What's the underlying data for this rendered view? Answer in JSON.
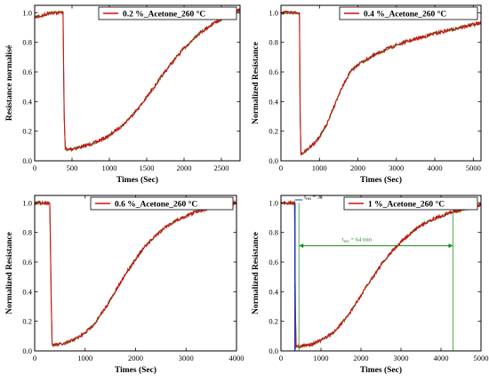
{
  "chart_data": [
    {
      "type": "line",
      "legend": "0.2 %_Acetone_260 °C",
      "legend_position": "top-right",
      "xlabel": "Times (Sec)",
      "ylabel": "Resistance normalisé",
      "xlim": [
        0,
        2750
      ],
      "ylim": [
        0,
        1.05
      ],
      "xticks": [
        0,
        500,
        1000,
        1500,
        2000,
        2500
      ],
      "yticks": [
        0.0,
        0.2,
        0.4,
        0.6,
        0.8,
        1.0
      ],
      "grid": false,
      "series": [
        {
          "color": "#cc1111",
          "x": [
            0,
            100,
            200,
            300,
            380,
            395,
            410,
            430,
            500,
            600,
            800,
            1000,
            1200,
            1400,
            1600,
            1800,
            2000,
            2200,
            2400,
            2600,
            2750
          ],
          "y": [
            0.97,
            0.98,
            1.0,
            1.0,
            1.0,
            0.3,
            0.09,
            0.075,
            0.08,
            0.09,
            0.12,
            0.17,
            0.25,
            0.36,
            0.5,
            0.64,
            0.76,
            0.86,
            0.93,
            0.98,
            1.02
          ]
        }
      ]
    },
    {
      "type": "line",
      "legend": "0.4 %_Acetone_260 °C",
      "legend_position": "top-right",
      "xlabel": "Times (Sec)",
      "ylabel": "Normalized Resistance",
      "xlim": [
        0,
        5200
      ],
      "ylim": [
        0,
        1.05
      ],
      "xticks": [
        0,
        1000,
        2000,
        3000,
        4000,
        5000
      ],
      "yticks": [
        0.0,
        0.2,
        0.4,
        0.6,
        0.8,
        1.0
      ],
      "grid": false,
      "series": [
        {
          "color": "#cc1111",
          "x": [
            0,
            200,
            400,
            480,
            500,
            520,
            600,
            800,
            1000,
            1200,
            1400,
            1600,
            1800,
            2000,
            2400,
            2800,
            3200,
            3600,
            4000,
            4500,
            5000,
            5200
          ],
          "y": [
            1.0,
            1.0,
            1.0,
            1.0,
            0.3,
            0.05,
            0.06,
            0.1,
            0.16,
            0.25,
            0.38,
            0.5,
            0.6,
            0.65,
            0.71,
            0.76,
            0.8,
            0.83,
            0.86,
            0.89,
            0.92,
            0.93
          ]
        }
      ]
    },
    {
      "type": "line",
      "legend": "0.6 %_Acetone_260 °C",
      "legend_position": "top-right",
      "xlabel": "Times (Sec)",
      "ylabel": "Normalized Resistance",
      "xlim": [
        0,
        4000
      ],
      "ylim": [
        0,
        1.05
      ],
      "xticks": [
        0,
        1000,
        2000,
        3000,
        4000
      ],
      "yticks": [
        0.0,
        0.2,
        0.4,
        0.6,
        0.8,
        1.0
      ],
      "grid": false,
      "series": [
        {
          "color": "#cc1111",
          "x": [
            0,
            100,
            200,
            300,
            330,
            345,
            400,
            600,
            800,
            1000,
            1200,
            1400,
            1600,
            1800,
            2000,
            2200,
            2400,
            2600,
            2800,
            3000,
            3200,
            3400,
            3600,
            3800,
            4000
          ],
          "y": [
            1.0,
            1.0,
            1.0,
            1.0,
            0.3,
            0.04,
            0.04,
            0.05,
            0.08,
            0.12,
            0.19,
            0.29,
            0.4,
            0.52,
            0.62,
            0.71,
            0.78,
            0.84,
            0.88,
            0.91,
            0.94,
            0.96,
            0.98,
            0.99,
            1.0
          ]
        }
      ]
    },
    {
      "type": "line",
      "legend": "1 %_Acetone_260 °C",
      "legend_position": "top-right",
      "xlabel": "Times (Sec)",
      "ylabel": "Normalized Resistance",
      "xlim": [
        0,
        5000
      ],
      "ylim": [
        0,
        1.05
      ],
      "xticks": [
        0,
        1000,
        2000,
        3000,
        4000,
        5000
      ],
      "yticks": [
        0.0,
        0.2,
        0.4,
        0.6,
        0.8,
        1.0
      ],
      "grid": false,
      "annotations": {
        "t_res_label": "t",
        "t_res_sub": "res",
        "t_res_value": " = 3s",
        "t_res_x_start": 350,
        "t_res_x_end": 450,
        "t_rec_label": "t",
        "t_rec_sub": "rec",
        "t_rec_value": " = 64 min",
        "t_rec_x_start": 450,
        "t_rec_x_end": 4300
      },
      "series": [
        {
          "color": "#cc1111",
          "x": [
            0,
            100,
            200,
            340,
            360,
            380,
            450,
            700,
            1000,
            1300,
            1600,
            1900,
            2200,
            2500,
            2800,
            3100,
            3400,
            3700,
            4000,
            4300,
            4600,
            4900,
            5000
          ],
          "y": [
            1.0,
            1.0,
            1.0,
            1.0,
            0.3,
            0.03,
            0.03,
            0.04,
            0.07,
            0.12,
            0.21,
            0.33,
            0.46,
            0.58,
            0.68,
            0.76,
            0.83,
            0.88,
            0.91,
            0.94,
            0.96,
            0.98,
            0.99
          ]
        }
      ]
    }
  ]
}
